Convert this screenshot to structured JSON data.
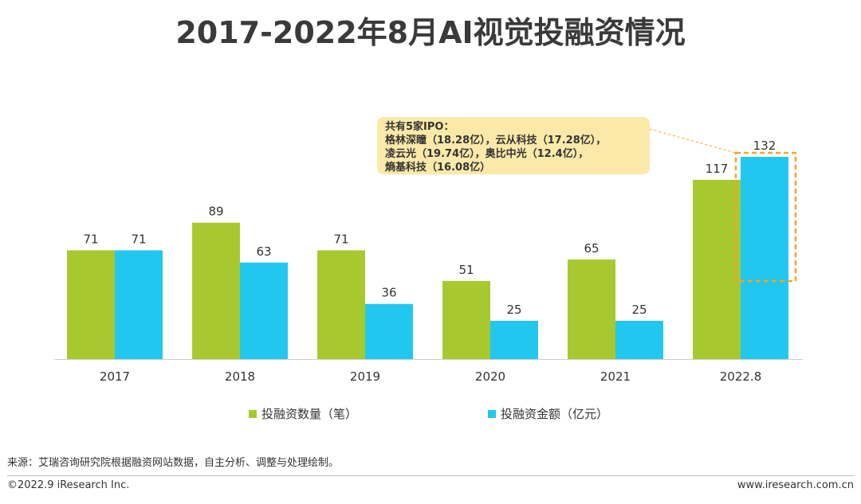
{
  "title": "2017-2022年8月AI视觉投融资情况",
  "chart_data": {
    "type": "bar",
    "categories": [
      "2017",
      "2018",
      "2019",
      "2020",
      "2021",
      "2022.8"
    ],
    "series": [
      {
        "name": "投融资数量（笔）",
        "values": [
          71,
          89,
          71,
          51,
          65,
          117
        ],
        "color": "#a7c92f"
      },
      {
        "name": "投融资金额（亿元）",
        "values": [
          71,
          63,
          36,
          25,
          25,
          132
        ],
        "color": "#22c7f0"
      }
    ],
    "ylim": [
      0,
      140
    ],
    "grid": false,
    "legend": "bottom"
  },
  "callout": {
    "lines": [
      "共有5家IPO：",
      "格林深瞳（18.28亿），云从科技（17.28亿），",
      "凌云光（19.74亿），奥比中光（12.4亿），",
      "熵基科技（16.08亿）"
    ]
  },
  "source": "来源：艾瑞咨询研究院根据融资网站数据，自主分析、调整与处理绘制。",
  "footer": {
    "copyright": "©2022.9 iResearch Inc.",
    "website": "www.iresearch.com.cn"
  }
}
